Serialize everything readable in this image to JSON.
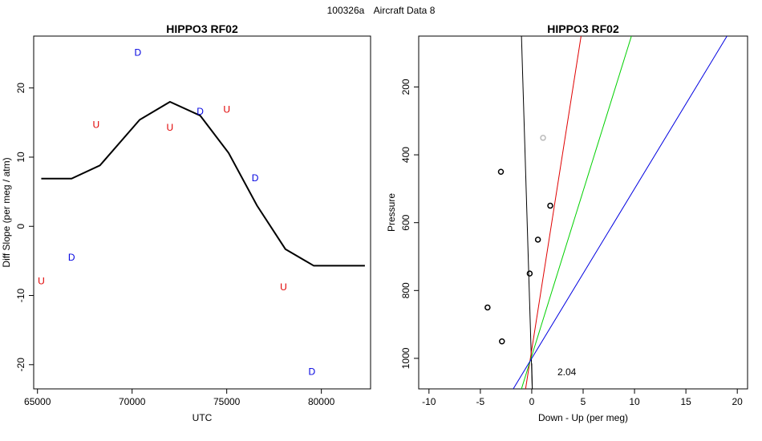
{
  "header": {
    "code": "100326a",
    "title": "Aircraft Data 8"
  },
  "chart_data": [
    {
      "type": "line",
      "title": "HIPPO3 RF02",
      "xlabel": "UTC",
      "ylabel": "Diff Slope (per meg / atm)",
      "xlim": [
        64800,
        82600
      ],
      "ylim": [
        -23.5,
        27.5
      ],
      "xticks": [
        65000,
        70000,
        75000,
        80000
      ],
      "yticks": [
        -20,
        -10,
        0,
        10,
        20
      ],
      "series": [
        {
          "style": "line",
          "color": "#000000",
          "x": [
            65200,
            66800,
            68300,
            70400,
            72000,
            73600,
            75100,
            76600,
            78100,
            79600,
            82300
          ],
          "y": [
            6.9,
            6.9,
            8.8,
            15.4,
            18.0,
            16.0,
            10.6,
            3.0,
            -3.3,
            -5.7,
            -5.7
          ]
        },
        {
          "style": "text-marker",
          "marker": "U",
          "color": "#e00000",
          "x": [
            65200,
            68100,
            72000,
            75000,
            78000
          ],
          "y": [
            -7.9,
            14.7,
            14.3,
            16.9,
            -8.8
          ]
        },
        {
          "style": "text-marker",
          "marker": "D",
          "color": "#0000e0",
          "x": [
            66800,
            70300,
            73600,
            76500,
            79500
          ],
          "y": [
            -4.5,
            25.1,
            16.6,
            7.0,
            -21.0
          ]
        }
      ]
    },
    {
      "type": "scatter",
      "title": "HIPPO3 RF02",
      "xlabel": "Down - Up (per meg)",
      "ylabel": "Pressure",
      "xlim": [
        -11,
        21
      ],
      "ylim": [
        1090,
        50
      ],
      "xticks": [
        -10,
        -5,
        0,
        5,
        10,
        15,
        20
      ],
      "yticks": [
        200,
        400,
        600,
        800,
        1000
      ],
      "annotation": {
        "text": "2.04",
        "x": 2.5,
        "y": 1040
      },
      "points": [
        {
          "x": -3.0,
          "y": 450,
          "color": "#000000"
        },
        {
          "x": 1.8,
          "y": 550,
          "color": "#000000"
        },
        {
          "x": 0.6,
          "y": 650,
          "color": "#000000"
        },
        {
          "x": -0.2,
          "y": 750,
          "color": "#000000"
        },
        {
          "x": -4.3,
          "y": 850,
          "color": "#000000"
        },
        {
          "x": -2.9,
          "y": 950,
          "color": "#000000"
        },
        {
          "x": 1.1,
          "y": 350,
          "color": "#bbbbbb"
        }
      ],
      "lines": [
        {
          "color": "#000000",
          "x1": -1.0,
          "y1": 50,
          "x2": 0.05,
          "y2": 1090
        },
        {
          "color": "#000000",
          "x1": 0.0,
          "y1": 1015,
          "x2": 0.05,
          "y2": 1090
        },
        {
          "color": "#e00000",
          "x1": 4.8,
          "y1": 50,
          "x2": -0.6,
          "y2": 1090
        },
        {
          "color": "#00d000",
          "x1": 9.7,
          "y1": 50,
          "x2": -1.0,
          "y2": 1090
        },
        {
          "color": "#0000e0",
          "x1": 19.0,
          "y1": 50,
          "x2": -1.8,
          "y2": 1090
        }
      ]
    }
  ]
}
